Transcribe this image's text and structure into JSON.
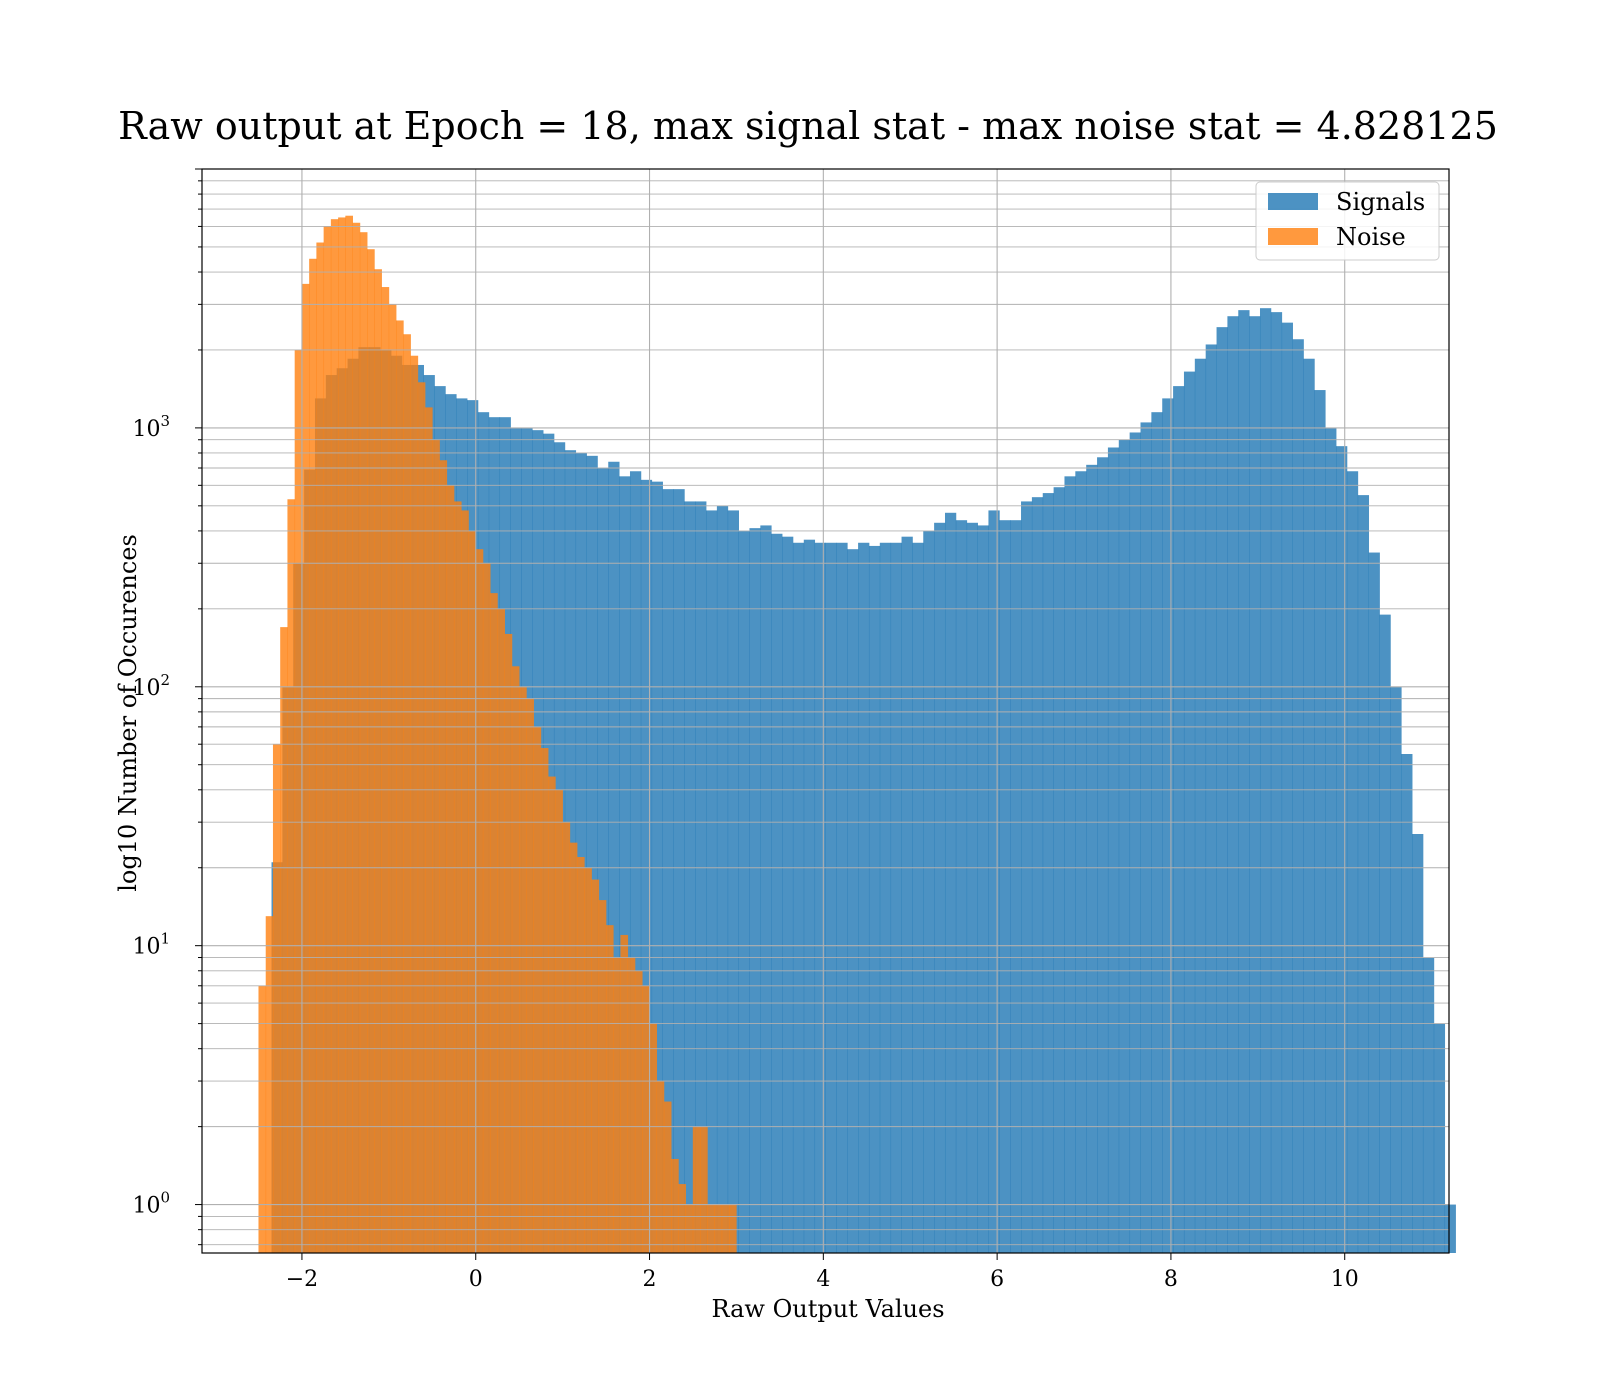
{
  "chart_data": {
    "type": "histogram",
    "title": "Raw output at Epoch = 18, max signal stat - max noise stat = 4.828125",
    "xlabel": "Raw Output Values",
    "ylabel": "log10 Number of Occurences",
    "xlim": [
      -3.15,
      11.2
    ],
    "ylim": [
      0.65,
      10000
    ],
    "y_scale": "log",
    "grid": true,
    "legend_position": "upper right",
    "x_ticks": [
      -2,
      0,
      2,
      4,
      6,
      8,
      10
    ],
    "x_tick_labels": [
      "−2",
      "0",
      "2",
      "4",
      "6",
      "8",
      "10"
    ],
    "y_ticks": [
      {
        "value": 1,
        "base": "10",
        "exp": "0"
      },
      {
        "value": 10,
        "base": "10",
        "exp": "1"
      },
      {
        "value": 100,
        "base": "10",
        "exp": "2"
      },
      {
        "value": 1000,
        "base": "10",
        "exp": "3"
      }
    ],
    "series": [
      {
        "name": "Signals",
        "color": "#1f77b4",
        "edges_start": -2.35,
        "bin_width": 0.125,
        "counts": [
          21,
          100,
          300,
          690,
          1300,
          1600,
          1700,
          1850,
          2050,
          2050,
          2000,
          1900,
          1750,
          1750,
          1600,
          1450,
          1350,
          1300,
          1280,
          1150,
          1100,
          1100,
          1000,
          1000,
          980,
          950,
          880,
          820,
          800,
          780,
          700,
          740,
          650,
          680,
          630,
          620,
          580,
          580,
          520,
          520,
          480,
          500,
          480,
          400,
          410,
          420,
          390,
          380,
          360,
          370,
          360,
          360,
          360,
          340,
          360,
          350,
          360,
          360,
          380,
          360,
          400,
          430,
          470,
          440,
          430,
          420,
          480,
          440,
          440,
          520,
          540,
          560,
          590,
          650,
          680,
          720,
          770,
          840,
          900,
          960,
          1050,
          1150,
          1300,
          1450,
          1650,
          1850,
          2100,
          2450,
          2700,
          2850,
          2700,
          2900,
          2800,
          2550,
          2200,
          1850,
          1400,
          1000,
          850,
          680,
          550,
          330,
          190,
          100,
          55,
          27,
          9,
          5,
          1
        ]
      },
      {
        "name": "Noise",
        "color": "#ff7f0e",
        "edges_start": -2.5,
        "bin_width": 0.0833,
        "counts": [
          7,
          13,
          60,
          170,
          530,
          2000,
          3600,
          4500,
          5200,
          6000,
          6400,
          6500,
          6600,
          6200,
          5700,
          4900,
          4100,
          3500,
          3000,
          2600,
          2300,
          1900,
          1500,
          1200,
          900,
          750,
          600,
          520,
          480,
          400,
          340,
          300,
          230,
          200,
          160,
          120,
          100,
          90,
          70,
          58,
          45,
          40,
          30,
          25,
          22,
          20,
          18,
          15,
          12,
          9,
          11,
          9,
          8,
          7,
          5,
          3,
          2.5,
          1.5,
          1.2,
          1,
          2,
          2,
          1,
          1,
          1,
          1
        ]
      }
    ]
  }
}
